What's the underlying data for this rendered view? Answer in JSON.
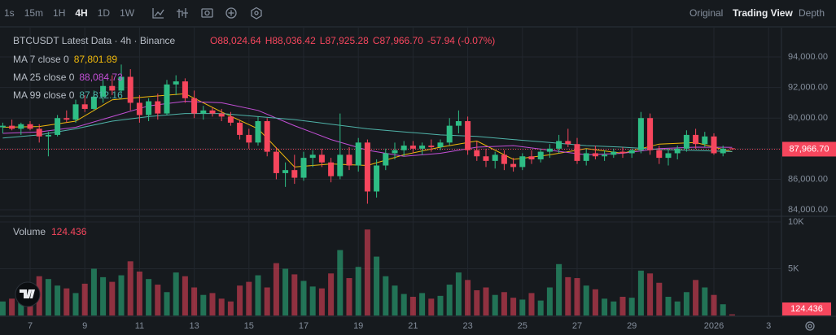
{
  "toolbar": {
    "intervals": [
      "1s",
      "15m",
      "1H",
      "4H",
      "1D",
      "1W"
    ],
    "active_interval": 3,
    "views": [
      "Original",
      "Trading View",
      "Depth"
    ],
    "active_view": 1
  },
  "chart_data": {
    "type": "candlestick",
    "title": "BTCUSDT Latest Data · 4h · Binance",
    "ohlc_labels": [
      "O88,024.64",
      "H88,036.42",
      "L87,925.28",
      "C87,966.70",
      "-57.94 (-0.07%)"
    ],
    "up_color": "#2ebd85",
    "down_color": "#f6465d",
    "grid": true,
    "categories": [
      null,
      null,
      null,
      "7",
      null,
      null,
      null,
      null,
      null,
      "9",
      null,
      null,
      null,
      null,
      null,
      "11",
      null,
      null,
      null,
      null,
      null,
      "13",
      null,
      null,
      null,
      null,
      null,
      "15",
      null,
      null,
      null,
      null,
      null,
      "17",
      null,
      null,
      null,
      null,
      null,
      "19",
      null,
      null,
      null,
      null,
      null,
      "21",
      null,
      null,
      null,
      null,
      null,
      "23",
      null,
      null,
      null,
      null,
      null,
      "25",
      null,
      null,
      null,
      null,
      null,
      "27",
      null,
      null,
      null,
      null,
      null,
      "29",
      null,
      null,
      null,
      null,
      null,
      null,
      null,
      null,
      "2026",
      null,
      null,
      null,
      null,
      null,
      "3"
    ],
    "ohlc": [
      [
        89400,
        89700,
        89000,
        89500
      ],
      [
        89500,
        89900,
        89200,
        89300
      ],
      [
        89300,
        89700,
        88900,
        89600
      ],
      [
        89600,
        89800,
        89200,
        89300
      ],
      [
        89300,
        89600,
        88400,
        88800
      ],
      [
        88800,
        89100,
        87500,
        88900
      ],
      [
        88900,
        90200,
        88800,
        90000
      ],
      [
        90000,
        90500,
        89700,
        89900
      ],
      [
        89900,
        91200,
        89700,
        90900
      ],
      [
        90900,
        91500,
        90400,
        90600
      ],
      [
        90600,
        91800,
        90500,
        91400
      ],
      [
        91400,
        92500,
        91000,
        92100
      ],
      [
        92100,
        92800,
        91500,
        91800
      ],
      [
        91800,
        93500,
        91600,
        92700
      ],
      [
        92700,
        93200,
        90500,
        91000
      ],
      [
        91000,
        91500,
        89700,
        90200
      ],
      [
        90200,
        91300,
        89800,
        91100
      ],
      [
        91100,
        91600,
        89900,
        90300
      ],
      [
        90300,
        92500,
        90200,
        92200
      ],
      [
        92200,
        92800,
        91500,
        92400
      ],
      [
        92400,
        92600,
        91000,
        91300
      ],
      [
        91300,
        91800,
        90000,
        90300
      ],
      [
        90300,
        90800,
        89900,
        90500
      ],
      [
        90500,
        90700,
        90100,
        90300
      ],
      [
        90300,
        90600,
        89800,
        90100
      ],
      [
        90100,
        90400,
        89500,
        89700
      ],
      [
        89700,
        89900,
        88600,
        88900
      ],
      [
        88900,
        89300,
        88000,
        88400
      ],
      [
        88400,
        90100,
        88200,
        89800
      ],
      [
        89800,
        90000,
        87500,
        87800
      ],
      [
        87800,
        88100,
        86000,
        86400
      ],
      [
        86400,
        87100,
        85500,
        86600
      ],
      [
        86600,
        87600,
        85700,
        86100
      ],
      [
        86100,
        87800,
        85900,
        87400
      ],
      [
        87400,
        87900,
        86800,
        87600
      ],
      [
        87600,
        88000,
        86800,
        87100
      ],
      [
        87100,
        87400,
        85800,
        86200
      ],
      [
        86200,
        90300,
        86000,
        87600
      ],
      [
        87600,
        88100,
        86600,
        86900
      ],
      [
        86900,
        88700,
        86500,
        88400
      ],
      [
        88400,
        88600,
        84400,
        85200
      ],
      [
        85200,
        87300,
        84800,
        86900
      ],
      [
        86900,
        88000,
        86600,
        87700
      ],
      [
        87700,
        88400,
        87300,
        87900
      ],
      [
        87900,
        88500,
        87500,
        88200
      ],
      [
        88200,
        88500,
        87700,
        88000
      ],
      [
        88000,
        88400,
        87600,
        88200
      ],
      [
        88200,
        88600,
        87800,
        88100
      ],
      [
        88100,
        88600,
        87900,
        88400
      ],
      [
        88400,
        90000,
        88200,
        89500
      ],
      [
        89500,
        90500,
        89000,
        89800
      ],
      [
        89800,
        90100,
        87600,
        87900
      ],
      [
        87900,
        88500,
        87200,
        87500
      ],
      [
        87500,
        88000,
        86800,
        87200
      ],
      [
        87200,
        87800,
        86700,
        87600
      ],
      [
        87600,
        87900,
        86600,
        87000
      ],
      [
        87000,
        87400,
        86500,
        86800
      ],
      [
        86800,
        87700,
        86600,
        87500
      ],
      [
        87500,
        87900,
        87000,
        87300
      ],
      [
        87300,
        88000,
        87100,
        87800
      ],
      [
        87800,
        88300,
        87400,
        88000
      ],
      [
        88000,
        88900,
        87700,
        88500
      ],
      [
        88500,
        89300,
        88100,
        88300
      ],
      [
        88300,
        88700,
        87000,
        87200
      ],
      [
        87200,
        88000,
        86900,
        87700
      ],
      [
        87700,
        88200,
        87300,
        87500
      ],
      [
        87500,
        87900,
        87200,
        87600
      ],
      [
        87600,
        88000,
        87400,
        87800
      ],
      [
        87800,
        88100,
        87400,
        87700
      ],
      [
        87700,
        88000,
        87400,
        87900
      ],
      [
        87900,
        90400,
        87700,
        90000
      ],
      [
        90000,
        90300,
        87600,
        87900
      ],
      [
        87900,
        88200,
        87000,
        87400
      ],
      [
        87400,
        88000,
        86900,
        87700
      ],
      [
        87700,
        88200,
        87300,
        88000
      ],
      [
        88000,
        89200,
        87800,
        88900
      ],
      [
        88900,
        89300,
        88000,
        88300
      ],
      [
        88300,
        89100,
        88100,
        88800
      ],
      [
        88800,
        89000,
        87600,
        87700
      ],
      [
        87700,
        88200,
        87500,
        88000
      ],
      [
        88024.64,
        88036.42,
        87925.28,
        87966.7
      ],
      null,
      null,
      null,
      null
    ],
    "ylim": [
      83630,
      95810
    ],
    "yticks": [
      {
        "value": 84000,
        "label": "84,000.00"
      },
      {
        "value": 86000,
        "label": "86,000.00"
      },
      {
        "value": 88000,
        "label": "88,000.00"
      },
      {
        "value": 90000,
        "label": "90,000.00"
      },
      {
        "value": 92000,
        "label": "92,000.00"
      },
      {
        "value": 94000,
        "label": "94,000.00"
      }
    ],
    "last_price_label": "87,966.70",
    "moving_averages": [
      {
        "name": "MA 7 close 0",
        "value_label": "87,801.89",
        "color": "#f0b90b",
        "x": [
          0,
          4,
          8,
          12,
          16,
          20,
          24,
          28,
          32,
          36,
          40,
          44,
          48,
          52,
          56,
          60,
          64,
          68,
          72,
          76,
          80
        ],
        "values": [
          89400,
          89450,
          89800,
          91200,
          91400,
          91600,
          90400,
          89300,
          86800,
          87000,
          86900,
          87600,
          88100,
          88500,
          87300,
          87600,
          88000,
          87700,
          88300,
          88400,
          87801.89
        ]
      },
      {
        "name": "MA 25 close 0",
        "value_label": "88,084.73",
        "color": "#c34fd6",
        "x": [
          0,
          4,
          8,
          12,
          16,
          20,
          24,
          28,
          32,
          36,
          40,
          44,
          48,
          52,
          56,
          60,
          64,
          68,
          72,
          76,
          80
        ],
        "values": [
          89000,
          89100,
          89400,
          90100,
          90800,
          91100,
          91000,
          90500,
          89500,
          88600,
          87900,
          87500,
          87700,
          88100,
          88200,
          87900,
          87600,
          87700,
          88000,
          88100,
          88084.73
        ]
      },
      {
        "name": "MA 99 close 0",
        "value_label": "87,812.16",
        "color": "#4fb3a9",
        "x": [
          0,
          4,
          8,
          12,
          16,
          20,
          24,
          28,
          32,
          36,
          40,
          44,
          48,
          52,
          56,
          60,
          64,
          68,
          72,
          76,
          80
        ],
        "values": [
          88700,
          88900,
          89300,
          89800,
          90100,
          90300,
          90300,
          90100,
          89900,
          89600,
          89300,
          89100,
          88900,
          88800,
          88600,
          88400,
          88200,
          88100,
          87950,
          87880,
          87812.16
        ]
      }
    ],
    "volume": {
      "name": "Volume",
      "value_label": "124.436",
      "values": [
        1500,
        1800,
        2600,
        3100,
        4200,
        3900,
        3200,
        2900,
        2400,
        3400,
        5000,
        4100,
        3600,
        4300,
        5800,
        4700,
        3900,
        3300,
        2500,
        4600,
        4200,
        3000,
        2200,
        2400,
        1800,
        1500,
        3200,
        3600,
        4300,
        3000,
        5600,
        5000,
        4400,
        3700,
        3100,
        2900,
        4500,
        7000,
        4000,
        5200,
        9200,
        6300,
        4200,
        3200,
        2300,
        2000,
        2400,
        1800,
        2100,
        3300,
        4600,
        3800,
        2700,
        3000,
        2200,
        2500,
        1900,
        1700,
        2400,
        1600,
        3000,
        5500,
        4100,
        4000,
        3200,
        2800,
        1800,
        1500,
        2000,
        1900,
        4800,
        4500,
        3500,
        2000,
        1500,
        2500,
        3800,
        3000,
        2200,
        1200,
        124.436,
        null,
        null,
        null,
        null
      ],
      "ylim": [
        0,
        10440
      ],
      "yticks": [
        {
          "value": 5000,
          "label": "5K"
        },
        {
          "value": 10000,
          "label": "10K"
        }
      ]
    }
  }
}
